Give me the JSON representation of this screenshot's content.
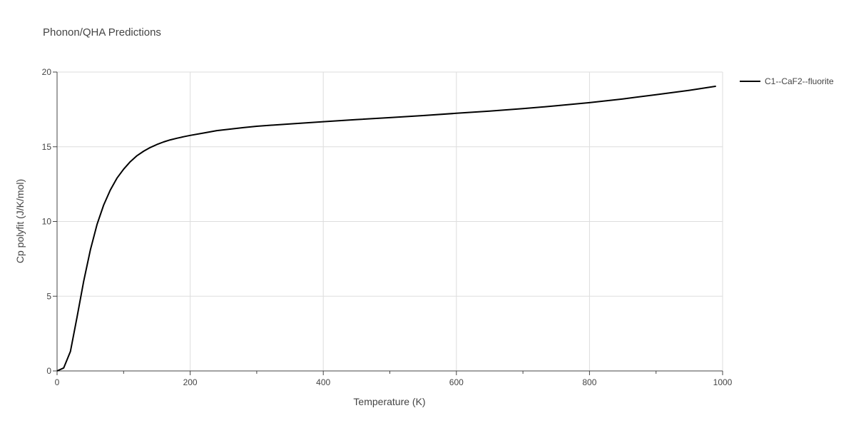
{
  "chart_data": {
    "type": "line",
    "title": "Phonon/QHA Predictions",
    "xlabel": "Temperature (K)",
    "ylabel": "Cp polyfit (J/K/mol)",
    "xlim": [
      0,
      1000
    ],
    "ylim": [
      0,
      20
    ],
    "x_ticks": [
      0,
      200,
      400,
      600,
      800,
      1000
    ],
    "y_ticks": [
      0,
      5,
      10,
      15,
      20
    ],
    "x_tick_labels": [
      "0",
      "200",
      "400",
      "600",
      "800",
      "1000"
    ],
    "y_tick_labels": [
      "0",
      "5",
      "10",
      "15",
      "20"
    ],
    "grid": true,
    "legend_position": "top-right-outside",
    "series": [
      {
        "name": "C1--CaF2--fluorite",
        "color": "#000000",
        "x": [
          0,
          10,
          20,
          30,
          40,
          50,
          60,
          70,
          80,
          90,
          100,
          110,
          120,
          130,
          140,
          150,
          160,
          170,
          180,
          190,
          200,
          220,
          240,
          260,
          280,
          300,
          350,
          400,
          450,
          500,
          550,
          600,
          650,
          700,
          750,
          800,
          850,
          900,
          950,
          990
        ],
        "y": [
          0,
          0.2,
          1.3,
          3.6,
          6.0,
          8.1,
          9.8,
          11.1,
          12.1,
          12.9,
          13.5,
          14.0,
          14.4,
          14.7,
          14.95,
          15.15,
          15.32,
          15.46,
          15.57,
          15.67,
          15.76,
          15.92,
          16.08,
          16.18,
          16.28,
          16.37,
          16.53,
          16.68,
          16.82,
          16.95,
          17.09,
          17.24,
          17.39,
          17.55,
          17.74,
          17.95,
          18.2,
          18.48,
          18.78,
          19.05
        ]
      }
    ]
  }
}
